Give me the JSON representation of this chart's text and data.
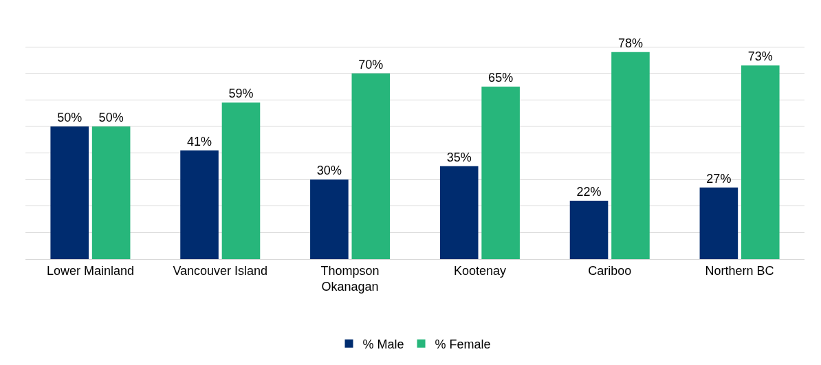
{
  "chart_data": {
    "type": "bar",
    "categories": [
      "Lower Mainland",
      "Vancouver Island",
      "Thompson Okanagan",
      "Kootenay",
      "Cariboo",
      "Northern BC"
    ],
    "series": [
      {
        "name": "% Male",
        "color": "#002c6f",
        "values": [
          50,
          41,
          30,
          35,
          22,
          27
        ],
        "value_labels": [
          "50%",
          "41%",
          "30%",
          "35%",
          "22%",
          "27%"
        ]
      },
      {
        "name": "% Female",
        "color": "#27b67b",
        "values": [
          50,
          59,
          70,
          65,
          78,
          73
        ],
        "value_labels": [
          "50%",
          "59%",
          "70%",
          "65%",
          "78%",
          "73%"
        ]
      }
    ],
    "tick_labels": "x",
    "grid": "y",
    "legend": "bottom"
  }
}
